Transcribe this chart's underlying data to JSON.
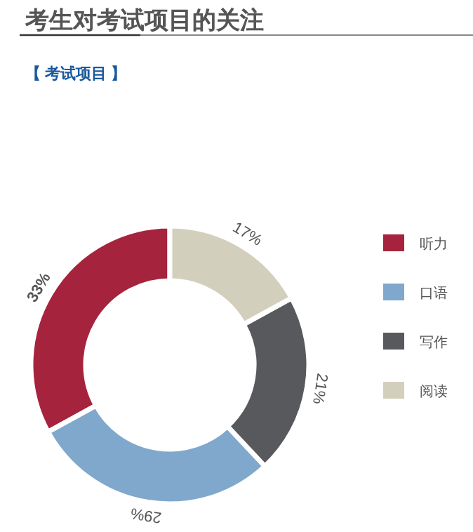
{
  "chart_data": {
    "type": "donut",
    "title": "考生对考试项目的关注",
    "subtitle": "【 考试项目 】",
    "categories": [
      "听力",
      "口语",
      "写作",
      "阅读"
    ],
    "values": [
      33,
      29,
      21,
      17
    ],
    "value_labels": [
      "33%",
      "29%",
      "21%",
      "17%"
    ],
    "colors": [
      "#a6233d",
      "#80a8cc",
      "#58595d",
      "#d3cfbd"
    ],
    "legend": "right"
  }
}
